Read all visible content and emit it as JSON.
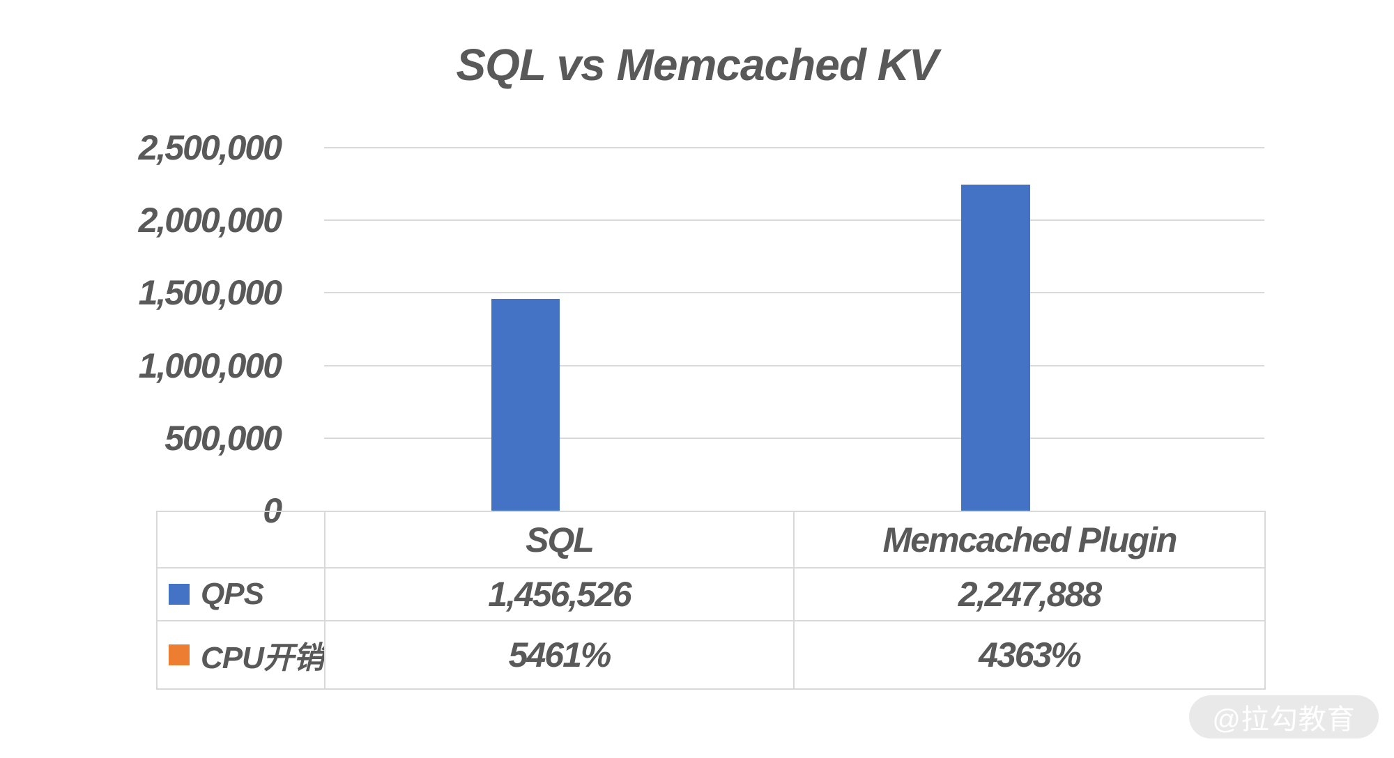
{
  "title": "SQL vs Memcached KV",
  "chart_data": {
    "type": "bar",
    "title": "SQL vs Memcached KV",
    "categories": [
      "SQL",
      "Memcached Plugin"
    ],
    "series": [
      {
        "name": "QPS",
        "color": "#4472C4",
        "values": [
          1456526,
          2247888
        ],
        "labels": [
          "1,456,526",
          "2,247,888"
        ]
      },
      {
        "name": "CPU开销",
        "color": "#ED7D31",
        "values": [
          54.61,
          43.63
        ],
        "labels": [
          "5461%",
          "4363%"
        ]
      }
    ],
    "ylim": [
      0,
      2500000
    ],
    "yticks": [
      "2,500,000",
      "2,000,000",
      "1,500,000",
      "1,000,000",
      "500,000",
      "0"
    ],
    "grid": true,
    "legend_position": "table-rows-left",
    "colors": {
      "text": "#595959",
      "grid": "#D9D9D9"
    }
  },
  "table": {
    "col_headers": [
      "SQL",
      "Memcached Plugin"
    ],
    "rows": [
      {
        "legend": "QPS",
        "legend_color": "#4472C4",
        "cells": [
          "1,456,526",
          "2,247,888"
        ]
      },
      {
        "legend": "CPU开销",
        "legend_color": "#ED7D31",
        "cells": [
          "5461%",
          "4363%"
        ]
      }
    ]
  },
  "watermark": {
    "text": "@拉勾教育"
  }
}
